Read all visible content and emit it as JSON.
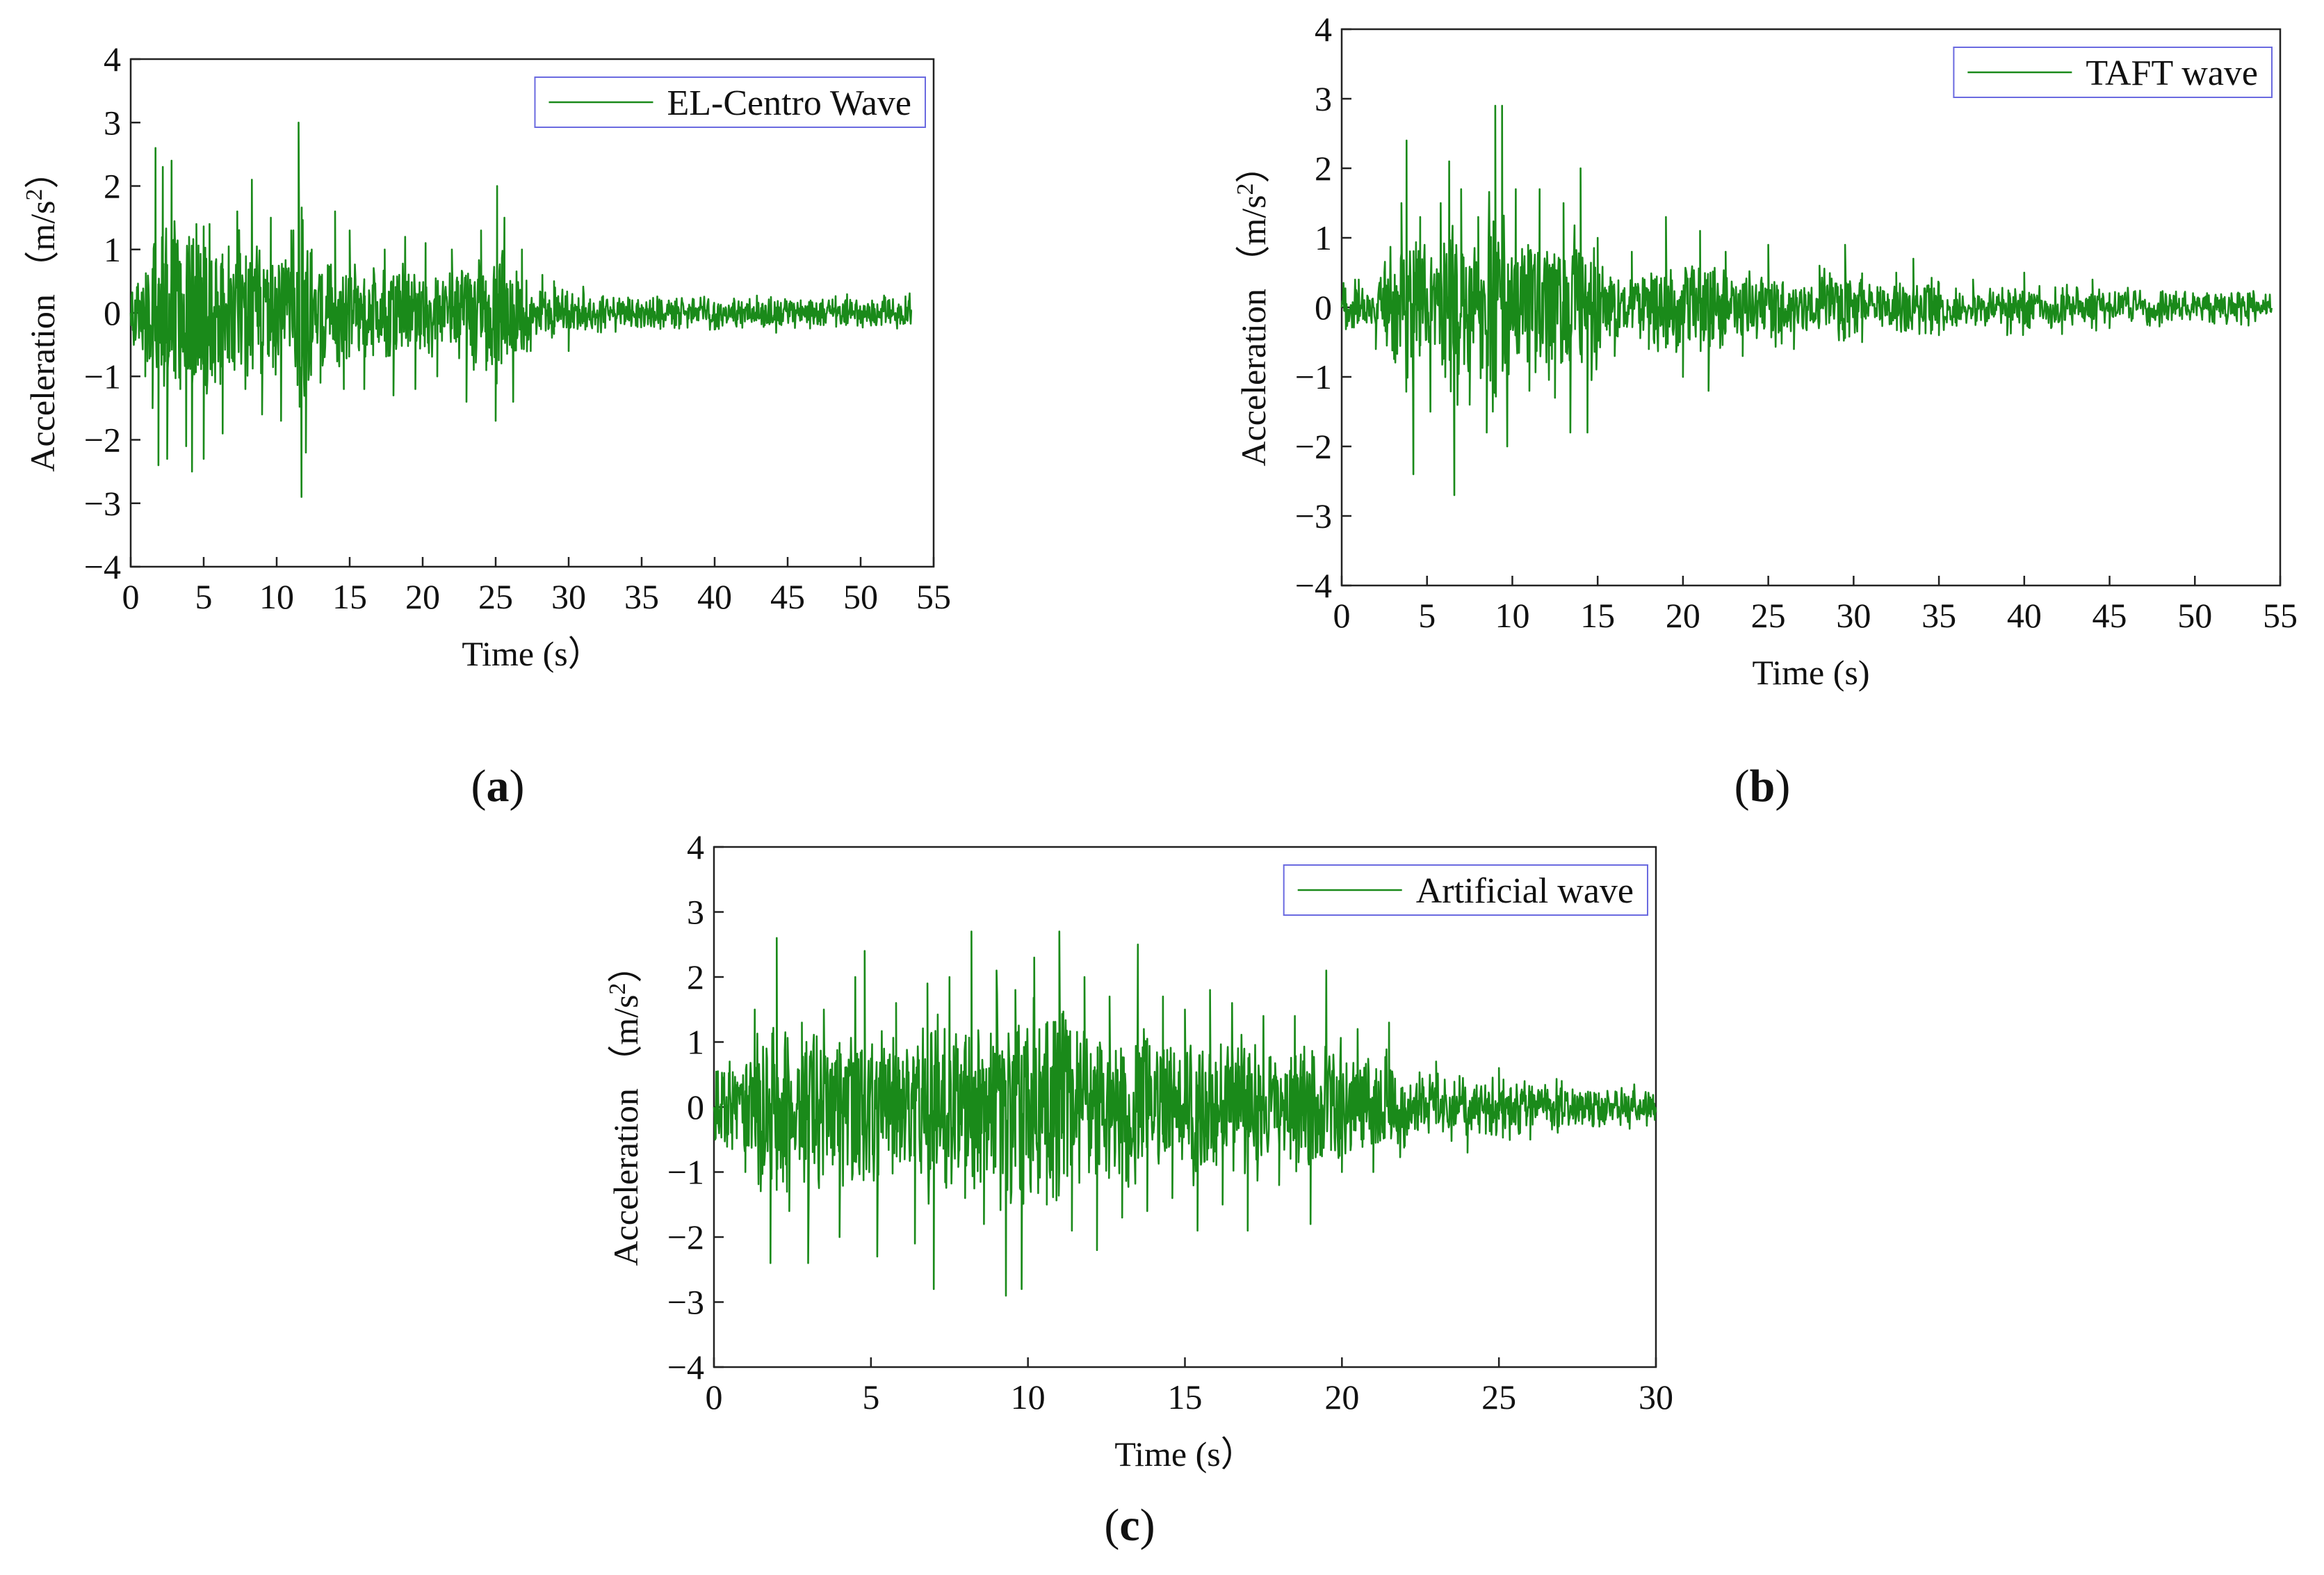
{
  "figure": {
    "line_color": "#1a8a1a",
    "axis_color": "#222222",
    "legend_border_color": "#6a6ae0"
  },
  "chart_data": [
    {
      "id": "a",
      "type": "line",
      "panel_label": "(a)",
      "panel_label_letter": "a",
      "legend": "EL-Centro Wave",
      "legend_position": "top-right",
      "xlabel": "Time (s）",
      "ylabel_prefix": "Acceleration （m/s",
      "ylabel_sup": "2",
      "ylabel_suffix": "）",
      "xlim": [
        0,
        55
      ],
      "ylim": [
        -4,
        4
      ],
      "xticks": [
        0,
        5,
        10,
        15,
        20,
        25,
        30,
        35,
        40,
        45,
        50,
        55
      ],
      "yticks": [
        -4,
        -3,
        -2,
        -1,
        0,
        1,
        2,
        3,
        4
      ],
      "duration": 53.5,
      "series": [
        {
          "name": "EL-Centro Wave",
          "peaks": [
            [
              0.3,
              0.2
            ],
            [
              1.0,
              -1.0
            ],
            [
              1.5,
              -1.5
            ],
            [
              1.7,
              2.6
            ],
            [
              1.9,
              -2.4
            ],
            [
              2.2,
              2.3
            ],
            [
              2.5,
              -2.3
            ],
            [
              2.8,
              2.4
            ],
            [
              3.4,
              -1.2
            ],
            [
              3.8,
              -2.1
            ],
            [
              4.0,
              1.2
            ],
            [
              4.2,
              -2.5
            ],
            [
              4.5,
              1.4
            ],
            [
              5.0,
              -2.3
            ],
            [
              5.4,
              1.4
            ],
            [
              6.3,
              -1.9
            ],
            [
              7.3,
              1.6
            ],
            [
              8.3,
              2.1
            ],
            [
              9.0,
              -1.6
            ],
            [
              9.6,
              1.5
            ],
            [
              10.3,
              -1.7
            ],
            [
              11.0,
              1.3
            ],
            [
              11.5,
              3.0
            ],
            [
              11.7,
              -2.9
            ],
            [
              12.0,
              -2.2
            ],
            [
              12.4,
              1.0
            ],
            [
              13.0,
              -1.1
            ],
            [
              14.0,
              1.6
            ],
            [
              14.6,
              -1.2
            ],
            [
              15.0,
              1.3
            ],
            [
              16.0,
              -1.2
            ],
            [
              17.4,
              1.0
            ],
            [
              18.0,
              -1.3
            ],
            [
              18.8,
              1.2
            ],
            [
              19.5,
              -1.2
            ],
            [
              20.2,
              1.1
            ],
            [
              21.0,
              -1.0
            ],
            [
              22.0,
              1.0
            ],
            [
              23.0,
              -1.4
            ],
            [
              24.0,
              1.3
            ],
            [
              25.0,
              -1.7
            ],
            [
              25.1,
              2.0
            ],
            [
              25.6,
              1.5
            ],
            [
              26.2,
              -1.4
            ],
            [
              26.8,
              1.0
            ],
            [
              27.4,
              -0.6
            ],
            [
              28.2,
              0.6
            ],
            [
              29.0,
              0.5
            ],
            [
              30.0,
              -0.6
            ],
            [
              31.0,
              0.4
            ],
            [
              32.0,
              -0.3
            ]
          ],
          "noise_amplitude": 0.15
        }
      ]
    },
    {
      "id": "b",
      "type": "line",
      "panel_label": "(b)",
      "panel_label_letter": "b",
      "legend": "TAFT wave",
      "legend_position": "top-right",
      "xlabel": "Time (s)",
      "ylabel_prefix": "Acceleration （m/s",
      "ylabel_sup": "2",
      "ylabel_suffix": "）",
      "xlim": [
        0,
        55
      ],
      "ylim": [
        -4,
        4
      ],
      "xticks": [
        0,
        5,
        10,
        15,
        20,
        25,
        30,
        35,
        40,
        45,
        50,
        55
      ],
      "yticks": [
        -4,
        -3,
        -2,
        -1,
        0,
        1,
        2,
        3,
        4
      ],
      "duration": 54.5,
      "series": [
        {
          "name": "TAFT wave",
          "peaks": [
            [
              1.0,
              0.4
            ],
            [
              2.0,
              -0.6
            ],
            [
              2.5,
              0.5
            ],
            [
              3.5,
              1.5
            ],
            [
              3.8,
              2.4
            ],
            [
              4.2,
              -2.4
            ],
            [
              4.6,
              1.3
            ],
            [
              5.2,
              -1.5
            ],
            [
              5.8,
              1.5
            ],
            [
              6.3,
              2.1
            ],
            [
              6.6,
              -2.7
            ],
            [
              7.0,
              1.7
            ],
            [
              7.5,
              -1.4
            ],
            [
              8.0,
              1.3
            ],
            [
              8.5,
              -1.8
            ],
            [
              9.0,
              2.9
            ],
            [
              9.4,
              2.9
            ],
            [
              9.7,
              -2.0
            ],
            [
              10.2,
              1.7
            ],
            [
              11.0,
              -1.2
            ],
            [
              11.6,
              1.7
            ],
            [
              12.5,
              -1.3
            ],
            [
              13.0,
              1.5
            ],
            [
              13.4,
              -1.8
            ],
            [
              14.0,
              2.0
            ],
            [
              14.4,
              -1.8
            ],
            [
              15.0,
              1.0
            ],
            [
              16.0,
              -0.7
            ],
            [
              17.0,
              0.8
            ],
            [
              18.0,
              -0.6
            ],
            [
              19.0,
              1.3
            ],
            [
              20.0,
              -1.0
            ],
            [
              21.0,
              1.1
            ],
            [
              21.5,
              -1.2
            ],
            [
              22.5,
              0.8
            ],
            [
              23.5,
              -0.7
            ],
            [
              25.0,
              0.9
            ],
            [
              26.5,
              -0.6
            ],
            [
              28.0,
              0.6
            ],
            [
              29.5,
              0.9
            ],
            [
              30.5,
              -0.5
            ],
            [
              32.5,
              0.5
            ],
            [
              33.5,
              0.7
            ],
            [
              35.0,
              -0.4
            ],
            [
              37.0,
              0.4
            ],
            [
              39.0,
              -0.4
            ],
            [
              40.0,
              0.5
            ],
            [
              44.0,
              0.4
            ],
            [
              45.0,
              -0.3
            ]
          ],
          "noise_amplitude": 0.13
        }
      ]
    },
    {
      "id": "c",
      "type": "line",
      "panel_label": "(c)",
      "panel_label_letter": "c",
      "legend": "Artificial wave",
      "legend_position": "top-right",
      "xlabel": "Time (s）",
      "ylabel_prefix": "Acceleration （m/s",
      "ylabel_sup": "2",
      "ylabel_suffix": "）",
      "xlim": [
        0,
        30
      ],
      "ylim": [
        -4,
        4
      ],
      "xticks": [
        0,
        5,
        10,
        15,
        20,
        25,
        30
      ],
      "yticks": [
        -4,
        -3,
        -2,
        -1,
        0,
        1,
        2,
        3,
        4
      ],
      "duration": 30,
      "series": [
        {
          "name": "Artificial wave",
          "peaks": [
            [
              0.5,
              0.7
            ],
            [
              1.0,
              -1.0
            ],
            [
              1.3,
              1.5
            ],
            [
              1.8,
              -2.4
            ],
            [
              2.0,
              2.6
            ],
            [
              2.4,
              -1.6
            ],
            [
              2.8,
              1.3
            ],
            [
              3.0,
              -2.4
            ],
            [
              3.5,
              1.5
            ],
            [
              4.0,
              -2.0
            ],
            [
              4.5,
              2.0
            ],
            [
              4.8,
              2.4
            ],
            [
              5.2,
              -2.3
            ],
            [
              5.8,
              1.6
            ],
            [
              6.4,
              -2.1
            ],
            [
              6.8,
              1.9
            ],
            [
              7.0,
              -2.8
            ],
            [
              7.5,
              2.0
            ],
            [
              8.0,
              -1.4
            ],
            [
              8.2,
              2.7
            ],
            [
              8.6,
              -1.8
            ],
            [
              9.0,
              2.1
            ],
            [
              9.3,
              -2.9
            ],
            [
              9.6,
              1.8
            ],
            [
              9.8,
              -2.8
            ],
            [
              10.2,
              2.3
            ],
            [
              10.6,
              -1.5
            ],
            [
              11.0,
              2.7
            ],
            [
              11.4,
              -1.9
            ],
            [
              11.8,
              2.0
            ],
            [
              12.2,
              -2.2
            ],
            [
              12.6,
              1.7
            ],
            [
              13.0,
              -1.7
            ],
            [
              13.5,
              2.5
            ],
            [
              13.8,
              -1.6
            ],
            [
              14.3,
              1.7
            ],
            [
              14.6,
              -1.4
            ],
            [
              15.0,
              1.5
            ],
            [
              15.4,
              -1.9
            ],
            [
              15.8,
              1.8
            ],
            [
              16.2,
              -1.5
            ],
            [
              16.5,
              1.6
            ],
            [
              17.0,
              -1.9
            ],
            [
              17.5,
              1.4
            ],
            [
              18.0,
              -1.2
            ],
            [
              18.5,
              1.4
            ],
            [
              19.0,
              -1.8
            ],
            [
              19.5,
              2.1
            ],
            [
              20.0,
              -1.0
            ],
            [
              20.5,
              1.2
            ],
            [
              21.0,
              -1.0
            ],
            [
              21.5,
              1.3
            ],
            [
              22.0,
              -0.6
            ],
            [
              23.0,
              0.7
            ],
            [
              24.0,
              -0.7
            ],
            [
              25.0,
              0.6
            ],
            [
              26.0,
              -0.5
            ],
            [
              27.0,
              0.4
            ],
            [
              28.0,
              -0.3
            ],
            [
              29.0,
              0.2
            ]
          ],
          "noise_amplitude": 0.2
        }
      ]
    }
  ]
}
